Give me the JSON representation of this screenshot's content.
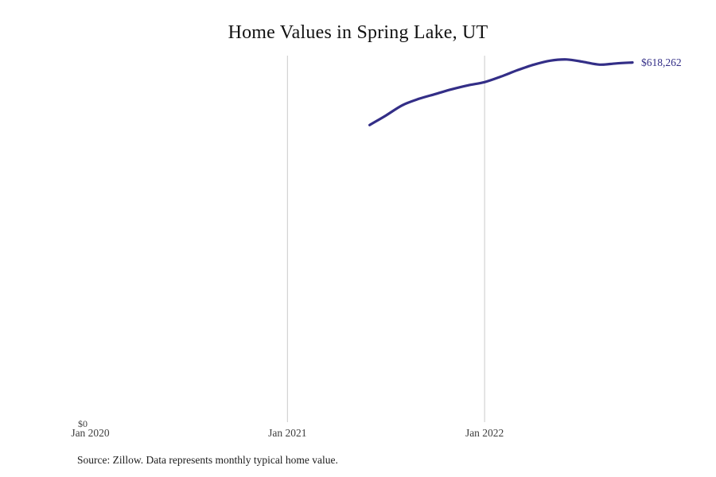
{
  "title": "Home Values in Spring Lake, UT",
  "source_note": "Source: Zillow. Data represents monthly typical home value.",
  "colors": {
    "line": "#332e87",
    "end_label": "#332e87",
    "gridline": "#cbcbcb",
    "title": "#121212",
    "tick": "#3d3d3d",
    "background": "#ffffff"
  },
  "chart_data": {
    "type": "line",
    "title": "Home Values in Spring Lake, UT",
    "xlabel": "",
    "ylabel": "",
    "x_tick_labels": [
      "Jan 2020",
      "Jan 2021",
      "Jan 2022"
    ],
    "x_tick_months": [
      0,
      12,
      24
    ],
    "gridline_months": [
      12,
      24
    ],
    "y_tick_labels": [
      "$0"
    ],
    "ylim": [
      0,
      630000
    ],
    "grid": "vertical-only",
    "legend": "none",
    "end_label": "$618,262",
    "x": [
      "Jun 2021",
      "Jul 2021",
      "Aug 2021",
      "Sep 2021",
      "Oct 2021",
      "Nov 2021",
      "Dec 2021",
      "Jan 2022",
      "Feb 2022",
      "Mar 2022",
      "Apr 2022",
      "May 2022",
      "Jun 2022",
      "Jul 2022",
      "Aug 2022",
      "Sep 2022",
      "Oct 2022"
    ],
    "x_months": [
      17,
      18,
      19,
      20,
      21,
      22,
      23,
      24,
      25,
      26,
      27,
      28,
      29,
      30,
      31,
      32,
      33
    ],
    "values": [
      510500,
      527000,
      544700,
      555600,
      563900,
      572100,
      578900,
      584400,
      594000,
      604900,
      614500,
      621400,
      623400,
      619300,
      614500,
      616600,
      618262
    ]
  }
}
